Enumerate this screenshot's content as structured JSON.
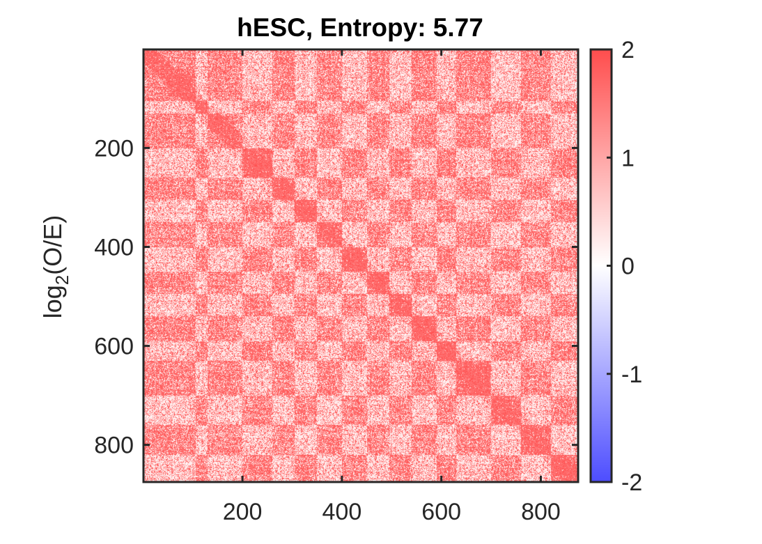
{
  "chart_data": {
    "type": "heatmap",
    "title": "hESC, Entropy: 5.77",
    "ylabel": {
      "base": "log",
      "subscript": "2",
      "rest": "(O/E)"
    },
    "xlabel": "",
    "matrix_size": 875,
    "xlim": [
      1,
      875
    ],
    "ylim": [
      1,
      875
    ],
    "y_reversed": true,
    "x_ticks": [
      200,
      400,
      600,
      800
    ],
    "y_ticks": [
      200,
      400,
      600,
      800
    ],
    "colorbar": {
      "range": [
        -2,
        2
      ],
      "ticks": [
        2,
        1,
        0,
        -1,
        -2
      ],
      "colors": {
        "low": "#4d4dff",
        "mid": "#ffffff",
        "high": "#ff4d4d"
      }
    },
    "domains": [
      [
        50,
        95
      ],
      [
        105,
        130
      ],
      [
        135,
        170
      ],
      [
        200,
        260
      ],
      [
        262,
        305
      ],
      [
        305,
        350
      ],
      [
        350,
        400
      ],
      [
        400,
        450
      ],
      [
        450,
        495
      ],
      [
        495,
        540
      ],
      [
        540,
        590
      ],
      [
        590,
        630
      ],
      [
        630,
        700
      ],
      [
        700,
        760
      ],
      [
        760,
        820
      ],
      [
        820,
        875
      ]
    ],
    "grid": false
  }
}
